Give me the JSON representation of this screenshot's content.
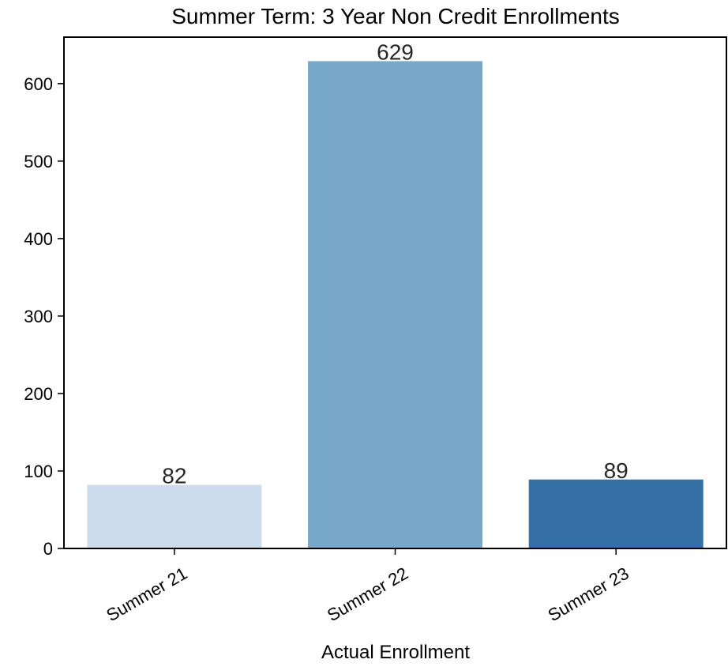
{
  "chart_data": {
    "type": "bar",
    "title": "Summer Term: 3 Year Non Credit Enrollments",
    "xlabel": "Actual Enrollment",
    "ylabel": "",
    "categories": [
      "Summer 21",
      "Summer 22",
      "Summer 23"
    ],
    "values": [
      82,
      629,
      89
    ],
    "data_labels": [
      "82",
      "629",
      "89"
    ],
    "colors": [
      "#cddcec",
      "#78a9c9",
      "#3571a4"
    ],
    "ylim": [
      0,
      660
    ],
    "yticks": [
      0,
      100,
      200,
      300,
      400,
      500,
      600
    ],
    "ytick_labels": [
      "0",
      "100",
      "200",
      "300",
      "400",
      "500",
      "600"
    ],
    "grid": false,
    "legend": "none"
  }
}
